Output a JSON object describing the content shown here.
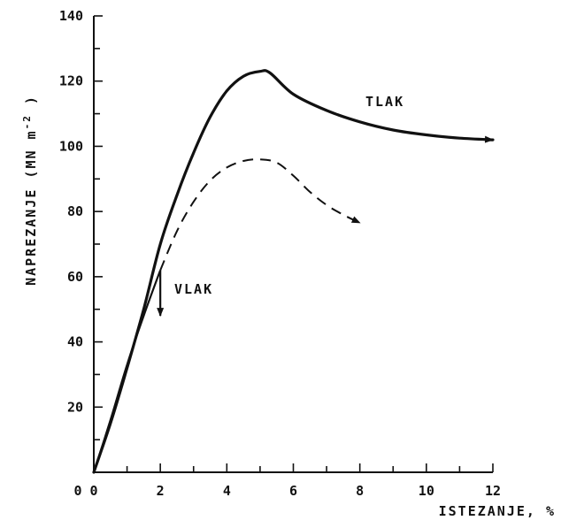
{
  "chart_data": {
    "type": "line",
    "title": "",
    "xlabel": "ISTEZANJE, %",
    "ylabel": "NAPREZANJE (MN m-2)",
    "ylabel_prefix": "NAPREZANJE (MN m",
    "ylabel_sup": "-2",
    "ylabel_suffix": " )",
    "xlim": [
      0,
      12
    ],
    "ylim": [
      0,
      140
    ],
    "x_ticks": [
      0,
      2,
      4,
      6,
      8,
      10,
      12
    ],
    "y_ticks": [
      20,
      40,
      60,
      80,
      100,
      120,
      140
    ],
    "grid": false,
    "series": [
      {
        "name": "TLAK",
        "style": "solid",
        "color": "#111111",
        "points": [
          [
            0,
            0
          ],
          [
            0.5,
            15
          ],
          [
            1,
            32
          ],
          [
            1.5,
            50
          ],
          [
            2,
            70
          ],
          [
            2.5,
            85
          ],
          [
            3,
            98
          ],
          [
            3.5,
            109
          ],
          [
            4,
            117
          ],
          [
            4.5,
            121.5
          ],
          [
            5,
            123
          ],
          [
            5.3,
            122.5
          ],
          [
            6,
            116
          ],
          [
            7,
            111
          ],
          [
            8,
            107.5
          ],
          [
            9,
            105
          ],
          [
            10,
            103.5
          ],
          [
            11,
            102.5
          ],
          [
            12,
            102
          ]
        ]
      },
      {
        "name": "",
        "style": "dashed",
        "color": "#111111",
        "points": [
          [
            2,
            62
          ],
          [
            2.5,
            74
          ],
          [
            3,
            83
          ],
          [
            3.5,
            89.5
          ],
          [
            4,
            93.5
          ],
          [
            4.5,
            95.5
          ],
          [
            5,
            96
          ],
          [
            5.5,
            95
          ],
          [
            6,
            91
          ],
          [
            6.5,
            86
          ],
          [
            7,
            82
          ],
          [
            7.5,
            79
          ],
          [
            8,
            76.5
          ]
        ]
      },
      {
        "name": "VLAK",
        "style": "solid",
        "color": "#111111",
        "points": [
          [
            0,
            0
          ],
          [
            0.5,
            16
          ],
          [
            1,
            33
          ],
          [
            1.5,
            48
          ],
          [
            2,
            62
          ],
          [
            2,
            48
          ]
        ]
      }
    ]
  }
}
